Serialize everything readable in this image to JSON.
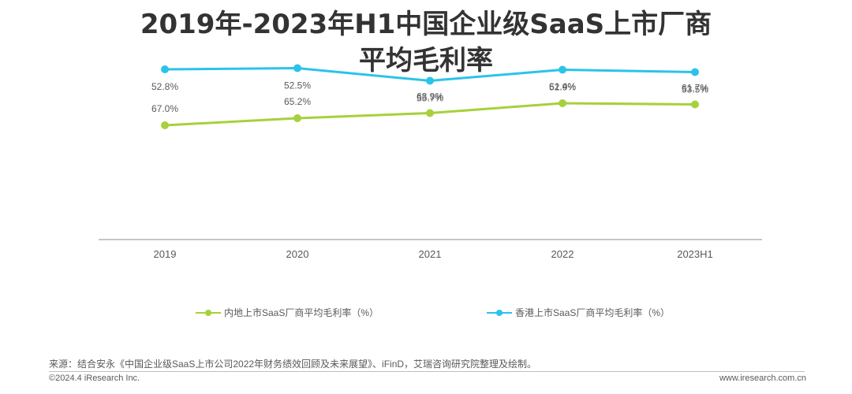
{
  "title_line1": "2019年-2023年H1中国企业级SaaS上市厂商",
  "title_line2": "平均毛利率",
  "colors": {
    "series1": "#a6d13a",
    "series2": "#2bc3ea",
    "axis": "#8c8c8c",
    "text": "#595959"
  },
  "chart_data": {
    "type": "line",
    "title": "2019年-2023年H1中国企业级SaaS上市厂商平均毛利率",
    "categories": [
      "2019",
      "2020",
      "2021",
      "2022",
      "2023H1"
    ],
    "series": [
      {
        "name": "内地上市SaaS厂商平均毛利率（%）",
        "values": [
          67.0,
          65.2,
          63.9,
          61.4,
          61.7
        ],
        "labels": [
          "67.0%",
          "65.2%",
          "63.9%",
          "61.4%",
          "61.7%"
        ]
      },
      {
        "name": "香港上市SaaS厂商平均毛利率（%）",
        "values": [
          52.8,
          52.5,
          55.7,
          52.9,
          53.5
        ],
        "labels": [
          "52.8%",
          "52.5%",
          "55.7%",
          "52.9%",
          "53.5%"
        ]
      }
    ],
    "grid": false,
    "legend_position": "bottom"
  },
  "source": "来源：结合安永《中国企业级SaaS上市公司2022年财务绩效回顾及未来展望》、iFinD，艾瑞咨询研究院整理及绘制。",
  "copyright": "©2024.4 iResearch Inc.",
  "website": "www.iresearch.com.cn"
}
